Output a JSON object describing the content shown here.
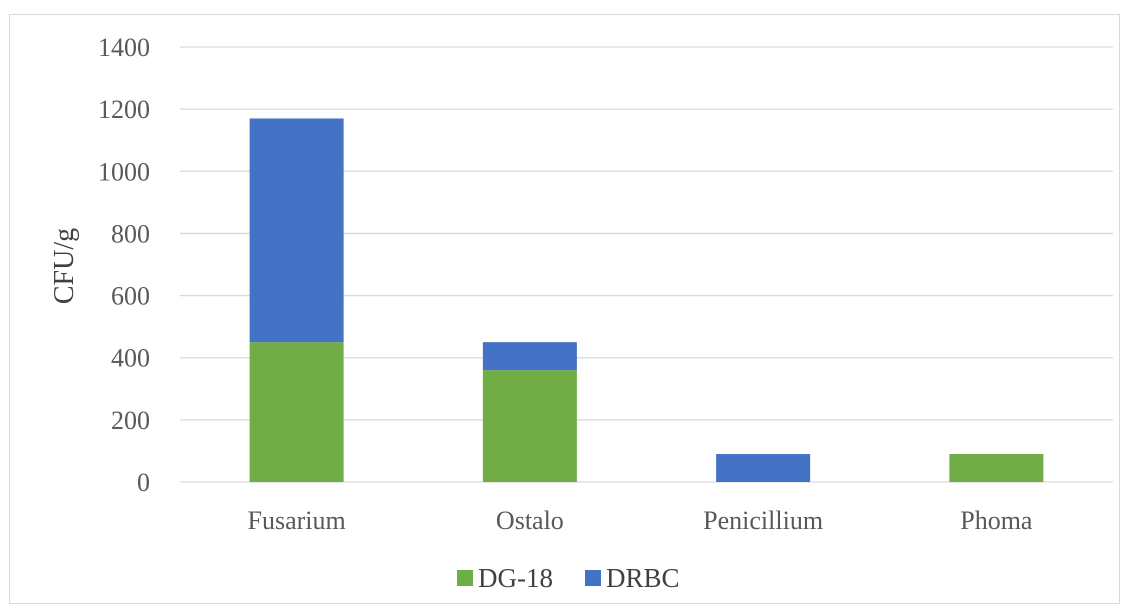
{
  "chart_data": {
    "type": "bar",
    "stacked": true,
    "categories": [
      "Fusarium",
      "Ostalo",
      "Penicillium",
      "Phoma"
    ],
    "series": [
      {
        "name": "DG-18",
        "values": [
          450,
          360,
          0,
          90
        ],
        "color": "#70ad47"
      },
      {
        "name": "DRBC",
        "values": [
          720,
          90,
          90,
          0
        ],
        "color": "#4472c4"
      }
    ],
    "ylabel": "CFU/g",
    "ylim": [
      0,
      1400
    ],
    "yticks": [
      0,
      200,
      400,
      600,
      800,
      1000,
      1200,
      1400
    ],
    "grid": true,
    "legend_position": "bottom"
  }
}
